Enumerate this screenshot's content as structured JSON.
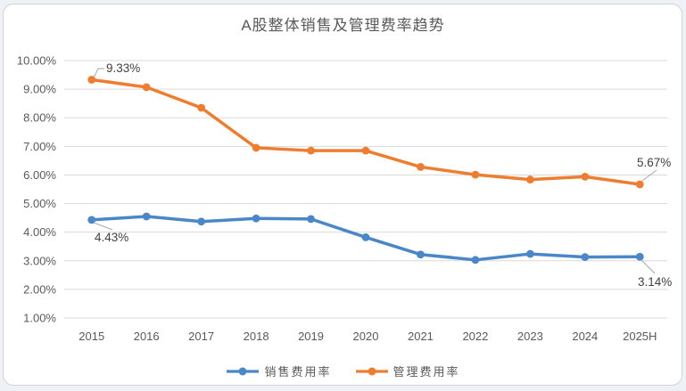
{
  "chart": {
    "title": "A股整体销售及管理费率趋势",
    "colors": {
      "sales_blue": "#4A86C8",
      "admin_orange": "#ED7D31",
      "grid": "#D9D9D9",
      "tick_text": "#595959",
      "data_label_text": "#404040",
      "leader_line": "#A6A6A6",
      "card_border": "#D2D2D2",
      "card_bg": "#FFFFFF"
    }
  },
  "chart_data": {
    "type": "line",
    "title": "A股整体销售及管理费率趋势",
    "categories": [
      "2015",
      "2016",
      "2017",
      "2018",
      "2019",
      "2020",
      "2021",
      "2022",
      "2023",
      "2024",
      "2025H"
    ],
    "series": [
      {
        "name": "销售费用率",
        "color": "#4A86C8",
        "values": [
          4.43,
          4.55,
          4.37,
          4.48,
          4.46,
          3.82,
          3.22,
          3.03,
          3.24,
          3.13,
          3.14
        ]
      },
      {
        "name": "管理费用率",
        "color": "#ED7D31",
        "values": [
          9.33,
          9.07,
          8.35,
          6.95,
          6.85,
          6.85,
          6.28,
          6.01,
          5.84,
          5.94,
          5.67
        ]
      }
    ],
    "xlabel": "",
    "ylabel": "",
    "ylim": [
      1,
      10
    ],
    "yticks": [
      10,
      9,
      8,
      7,
      6,
      5,
      4,
      3,
      2,
      1
    ],
    "ytick_labels": [
      "10.00%",
      "9.00%",
      "8.00%",
      "7.00%",
      "6.00%",
      "5.00%",
      "4.00%",
      "3.00%",
      "2.00%",
      "1.00%"
    ],
    "grid": true,
    "legend_position": "bottom",
    "annotations": [
      {
        "id": "a0",
        "series": "管理费用率",
        "category": "2015",
        "text": "9.33%"
      },
      {
        "id": "a1",
        "series": "管理费用率",
        "category": "2025H",
        "text": "5.67%"
      },
      {
        "id": "a2",
        "series": "销售费用率",
        "category": "2015",
        "text": "4.43%"
      },
      {
        "id": "a3",
        "series": "销售费用率",
        "category": "2025H",
        "text": "3.14%"
      }
    ]
  }
}
